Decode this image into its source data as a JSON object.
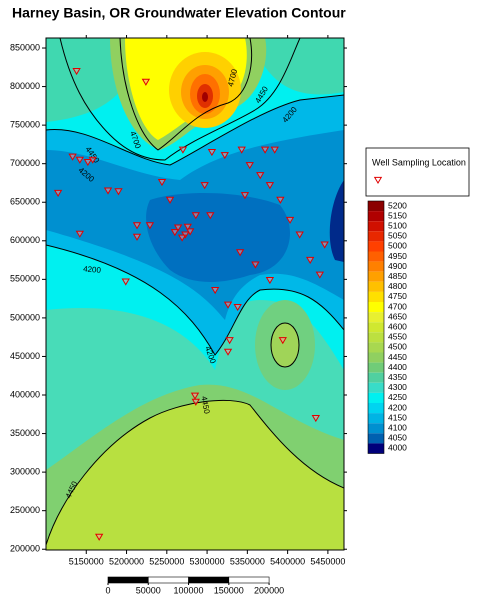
{
  "chart_data": {
    "type": "contour-map",
    "title": "Harney Basin, OR Groundwater Elevation Contour",
    "xlim": [
      5100000,
      5470000
    ],
    "ylim": [
      199000,
      863000
    ],
    "xticks": [
      5150000,
      5200000,
      5250000,
      5300000,
      5350000,
      5400000,
      5450000
    ],
    "yticks": [
      200000,
      250000,
      300000,
      350000,
      400000,
      450000,
      500000,
      550000,
      600000,
      650000,
      700000,
      750000,
      800000,
      850000
    ],
    "contour_labels": [
      4700,
      4450,
      4200,
      4700,
      4450,
      4200,
      4200,
      4200,
      4450,
      4450
    ],
    "wells": {
      "name": "Well Sampling Location",
      "color": "#e00000",
      "x": [
        5138000,
        5224000,
        5115000,
        5133000,
        5142000,
        5152000,
        5158000,
        5142000,
        5177000,
        5190000,
        5199000,
        5229000,
        5244000,
        5270000,
        5286000,
        5264000,
        5273000,
        5279000,
        5260000,
        5276000,
        5269000,
        5304000,
        5306000,
        5322000,
        5343000,
        5353000,
        5372000,
        5384000,
        5378000,
        5391000,
        5403000,
        5415000,
        5428000,
        5440000,
        5446000,
        5341000,
        5360000,
        5378000,
        5310000,
        5326000,
        5338000,
        5328000,
        5326000,
        5394000,
        5435000,
        5285000,
        5286000,
        5166000,
        5297000,
        5254000,
        5213000,
        5213000,
        5347000,
        5366000
      ],
      "y": [
        820000,
        806000,
        662000,
        709000,
        705000,
        702000,
        705000,
        609000,
        665000,
        664000,
        547000,
        620000,
        676000,
        718000,
        633000,
        617000,
        608000,
        612000,
        611000,
        618000,
        604000,
        633000,
        715000,
        711000,
        718000,
        698000,
        718000,
        718000,
        672000,
        653000,
        627000,
        608000,
        575000,
        556000,
        595000,
        585000,
        569000,
        549000,
        536000,
        517000,
        514000,
        471000,
        456000,
        471000,
        370000,
        399000,
        391000,
        216000,
        672000,
        653000,
        620000,
        605000,
        659000,
        685000
      ]
    },
    "colorbar": {
      "levels": [
        5200,
        5150,
        5100,
        5050,
        5000,
        4950,
        4900,
        4850,
        4800,
        4750,
        4700,
        4650,
        4600,
        4550,
        4500,
        4450,
        4400,
        4350,
        4300,
        4250,
        4200,
        4150,
        4100,
        4050,
        4000
      ],
      "colors": [
        "#8b0000",
        "#b00000",
        "#d01000",
        "#e82800",
        "#ff4000",
        "#ff6000",
        "#ff8000",
        "#ffa000",
        "#ffc000",
        "#ffe000",
        "#ffff00",
        "#e8f030",
        "#d0e830",
        "#bce040",
        "#a8d850",
        "#90d060",
        "#70cc78",
        "#50d0a0",
        "#38dcc8",
        "#00f0f0",
        "#00d4f0",
        "#00b4e4",
        "#0090d0",
        "#0060b0",
        "#00007a"
      ]
    },
    "scalebar": {
      "ticks": [
        0,
        50000,
        100000,
        150000,
        200000
      ]
    }
  }
}
